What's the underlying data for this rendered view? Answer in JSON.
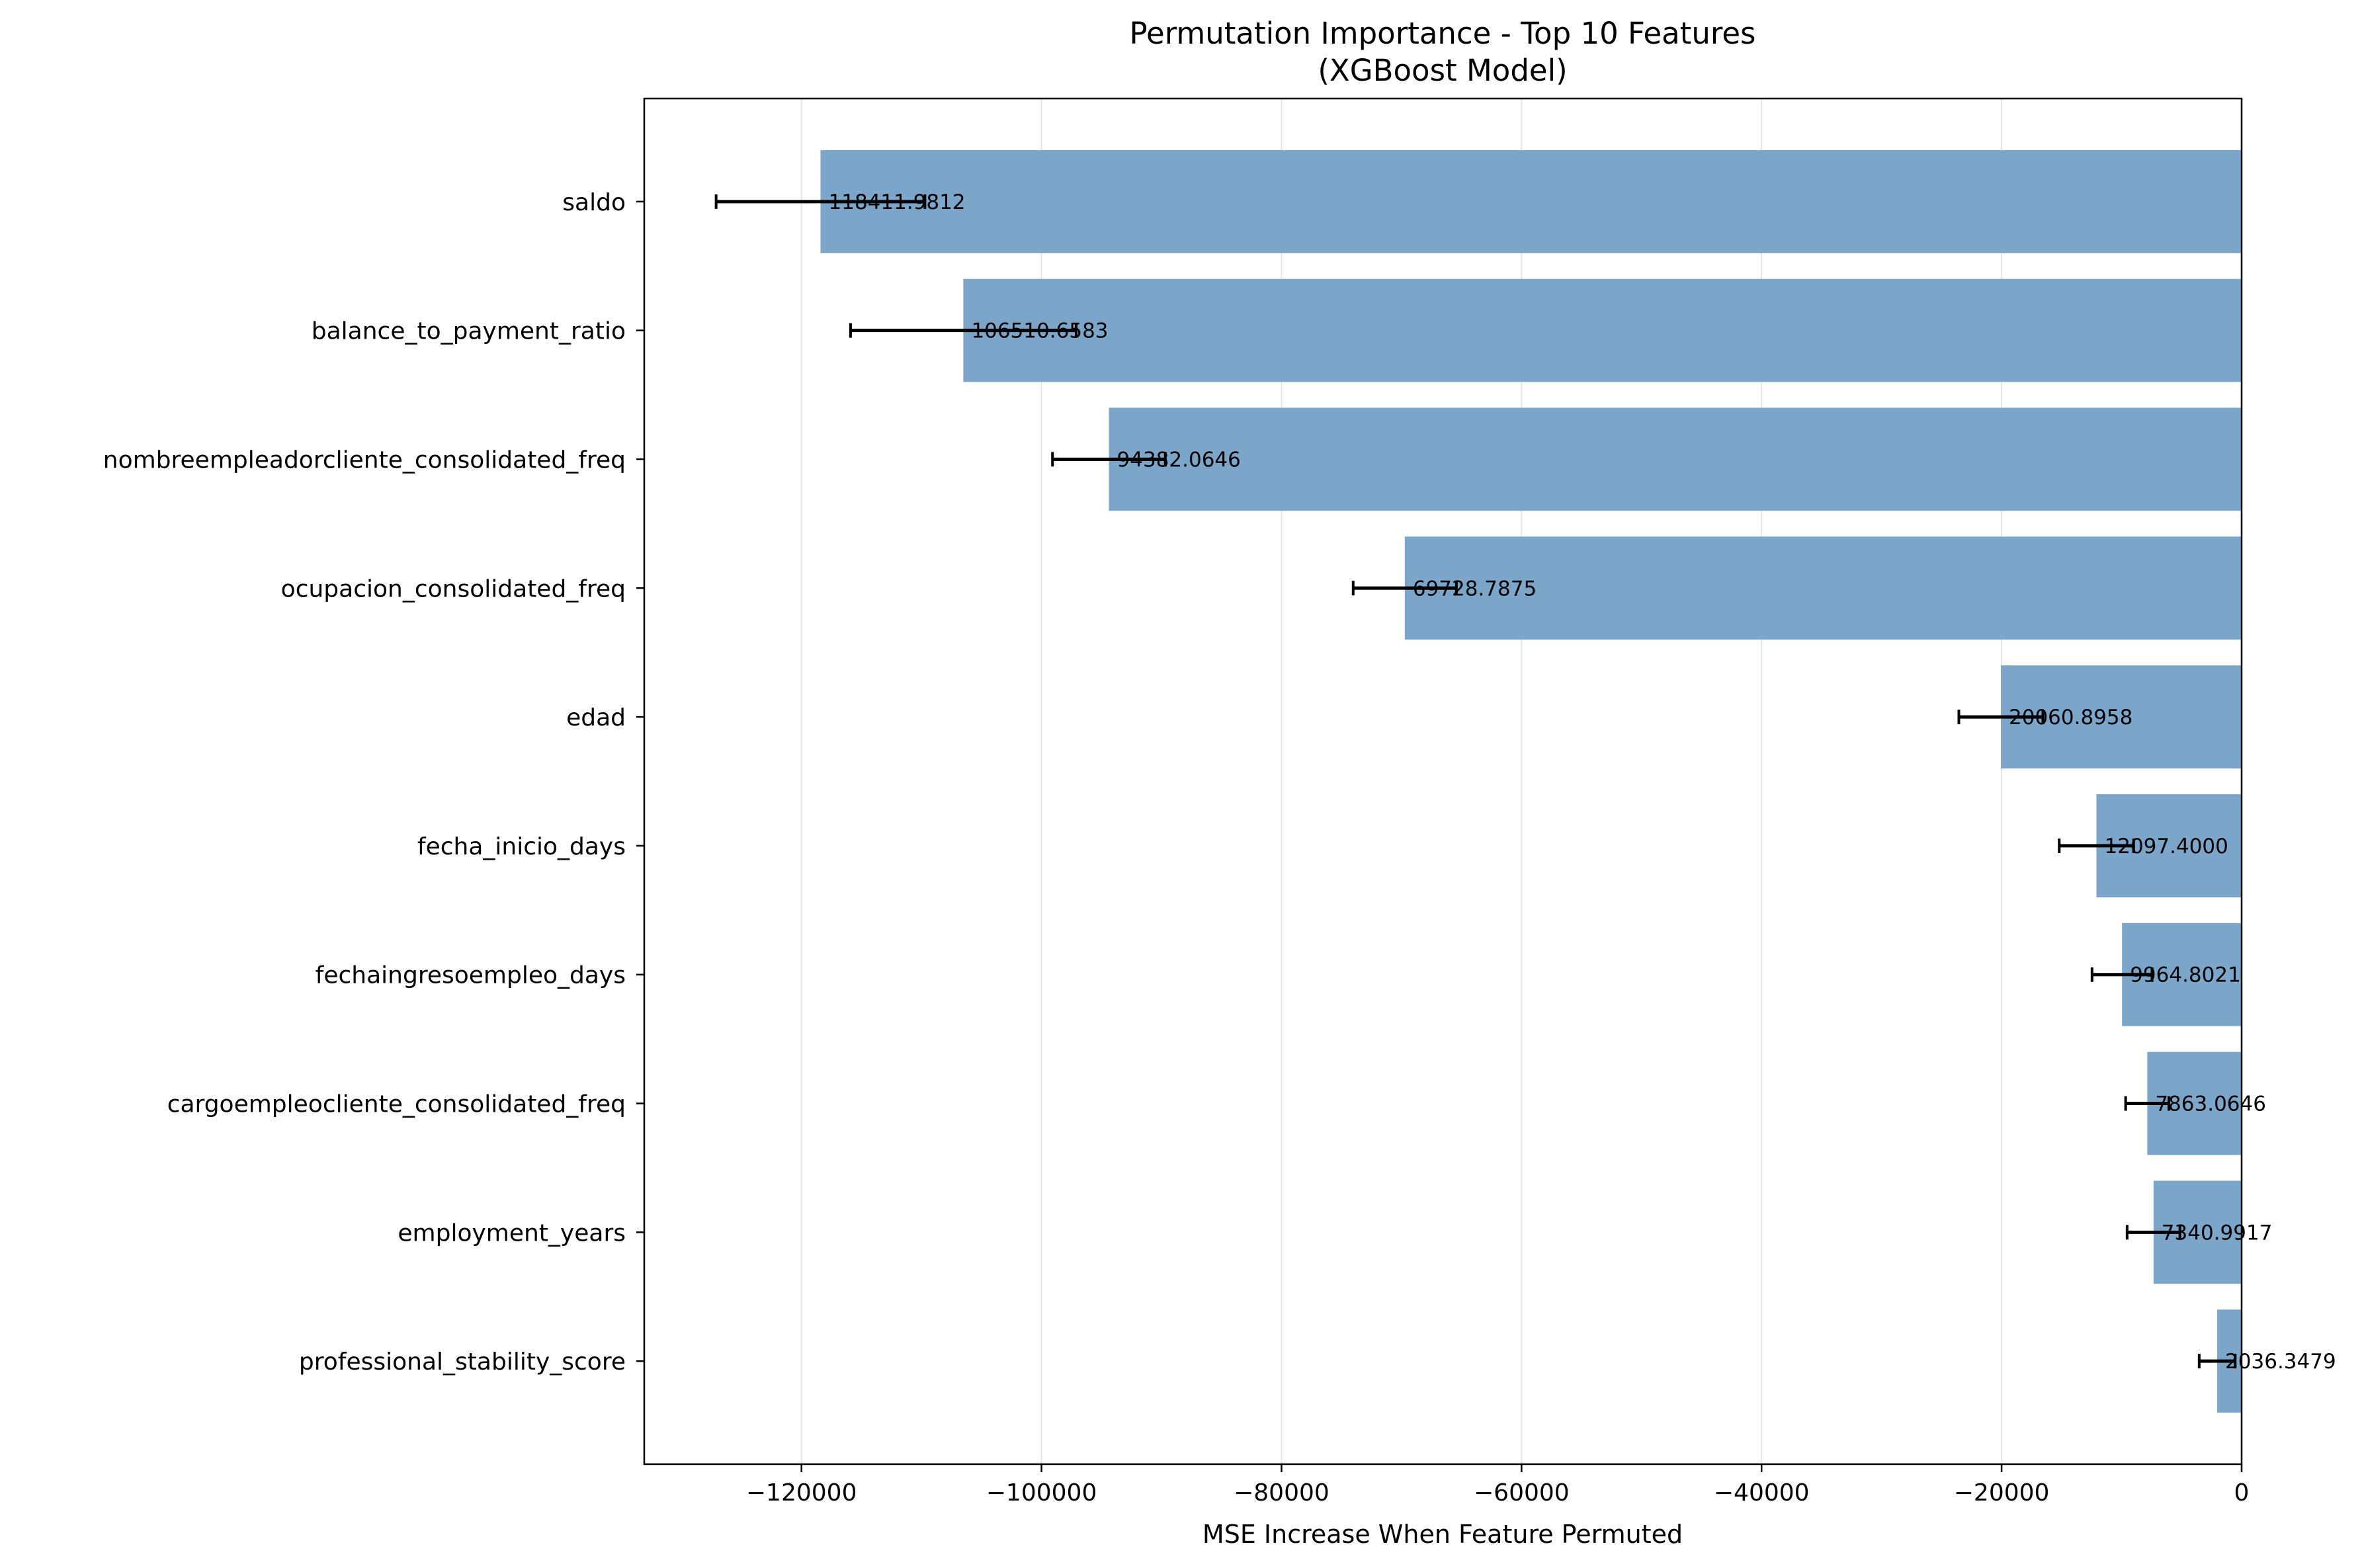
{
  "chart_data": {
    "type": "bar",
    "orientation": "horizontal",
    "title": [
      "Permutation Importance - Top 10 Features",
      "(XGBoost Model)"
    ],
    "xlabel": "MSE Increase When Feature Permuted",
    "ylabel": "",
    "xlim": [
      -133100,
      0
    ],
    "xticks": [
      -120000,
      -100000,
      -80000,
      -60000,
      -40000,
      -20000,
      0
    ],
    "xtick_labels": [
      "−120000",
      "−100000",
      "−80000",
      "−60000",
      "−40000",
      "−20000",
      "0"
    ],
    "grid": "x",
    "legend": "none",
    "bar_color": "#7ba6c9",
    "errorbar_color": "#000000",
    "categories": [
      "saldo",
      "balance_to_payment_ratio",
      "nombreempleadorcliente_consolidated_freq",
      "ocupacion_consolidated_freq",
      "edad",
      "fecha_inicio_days",
      "fechaingresoempleo_days",
      "cargoempleocliente_consolidated_freq",
      "employment_years",
      "professional_stability_score"
    ],
    "values": [
      -118411.9812,
      -106510.6583,
      -94382.0646,
      -69728.7875,
      -20060.8958,
      -12097.4,
      -9964.8021,
      -7863.0646,
      -7340.9917,
      -2036.3479
    ],
    "errors": [
      8700,
      9400,
      4700,
      4300,
      3500,
      3100,
      2500,
      1800,
      2200,
      1500
    ],
    "data_labels": [
      "118411.9812",
      "106510.6583",
      "94382.0646",
      "69728.7875",
      "20060.8958",
      "12097.4000",
      "9964.8021",
      "7863.0646",
      "7340.9917",
      "2036.3479"
    ]
  }
}
